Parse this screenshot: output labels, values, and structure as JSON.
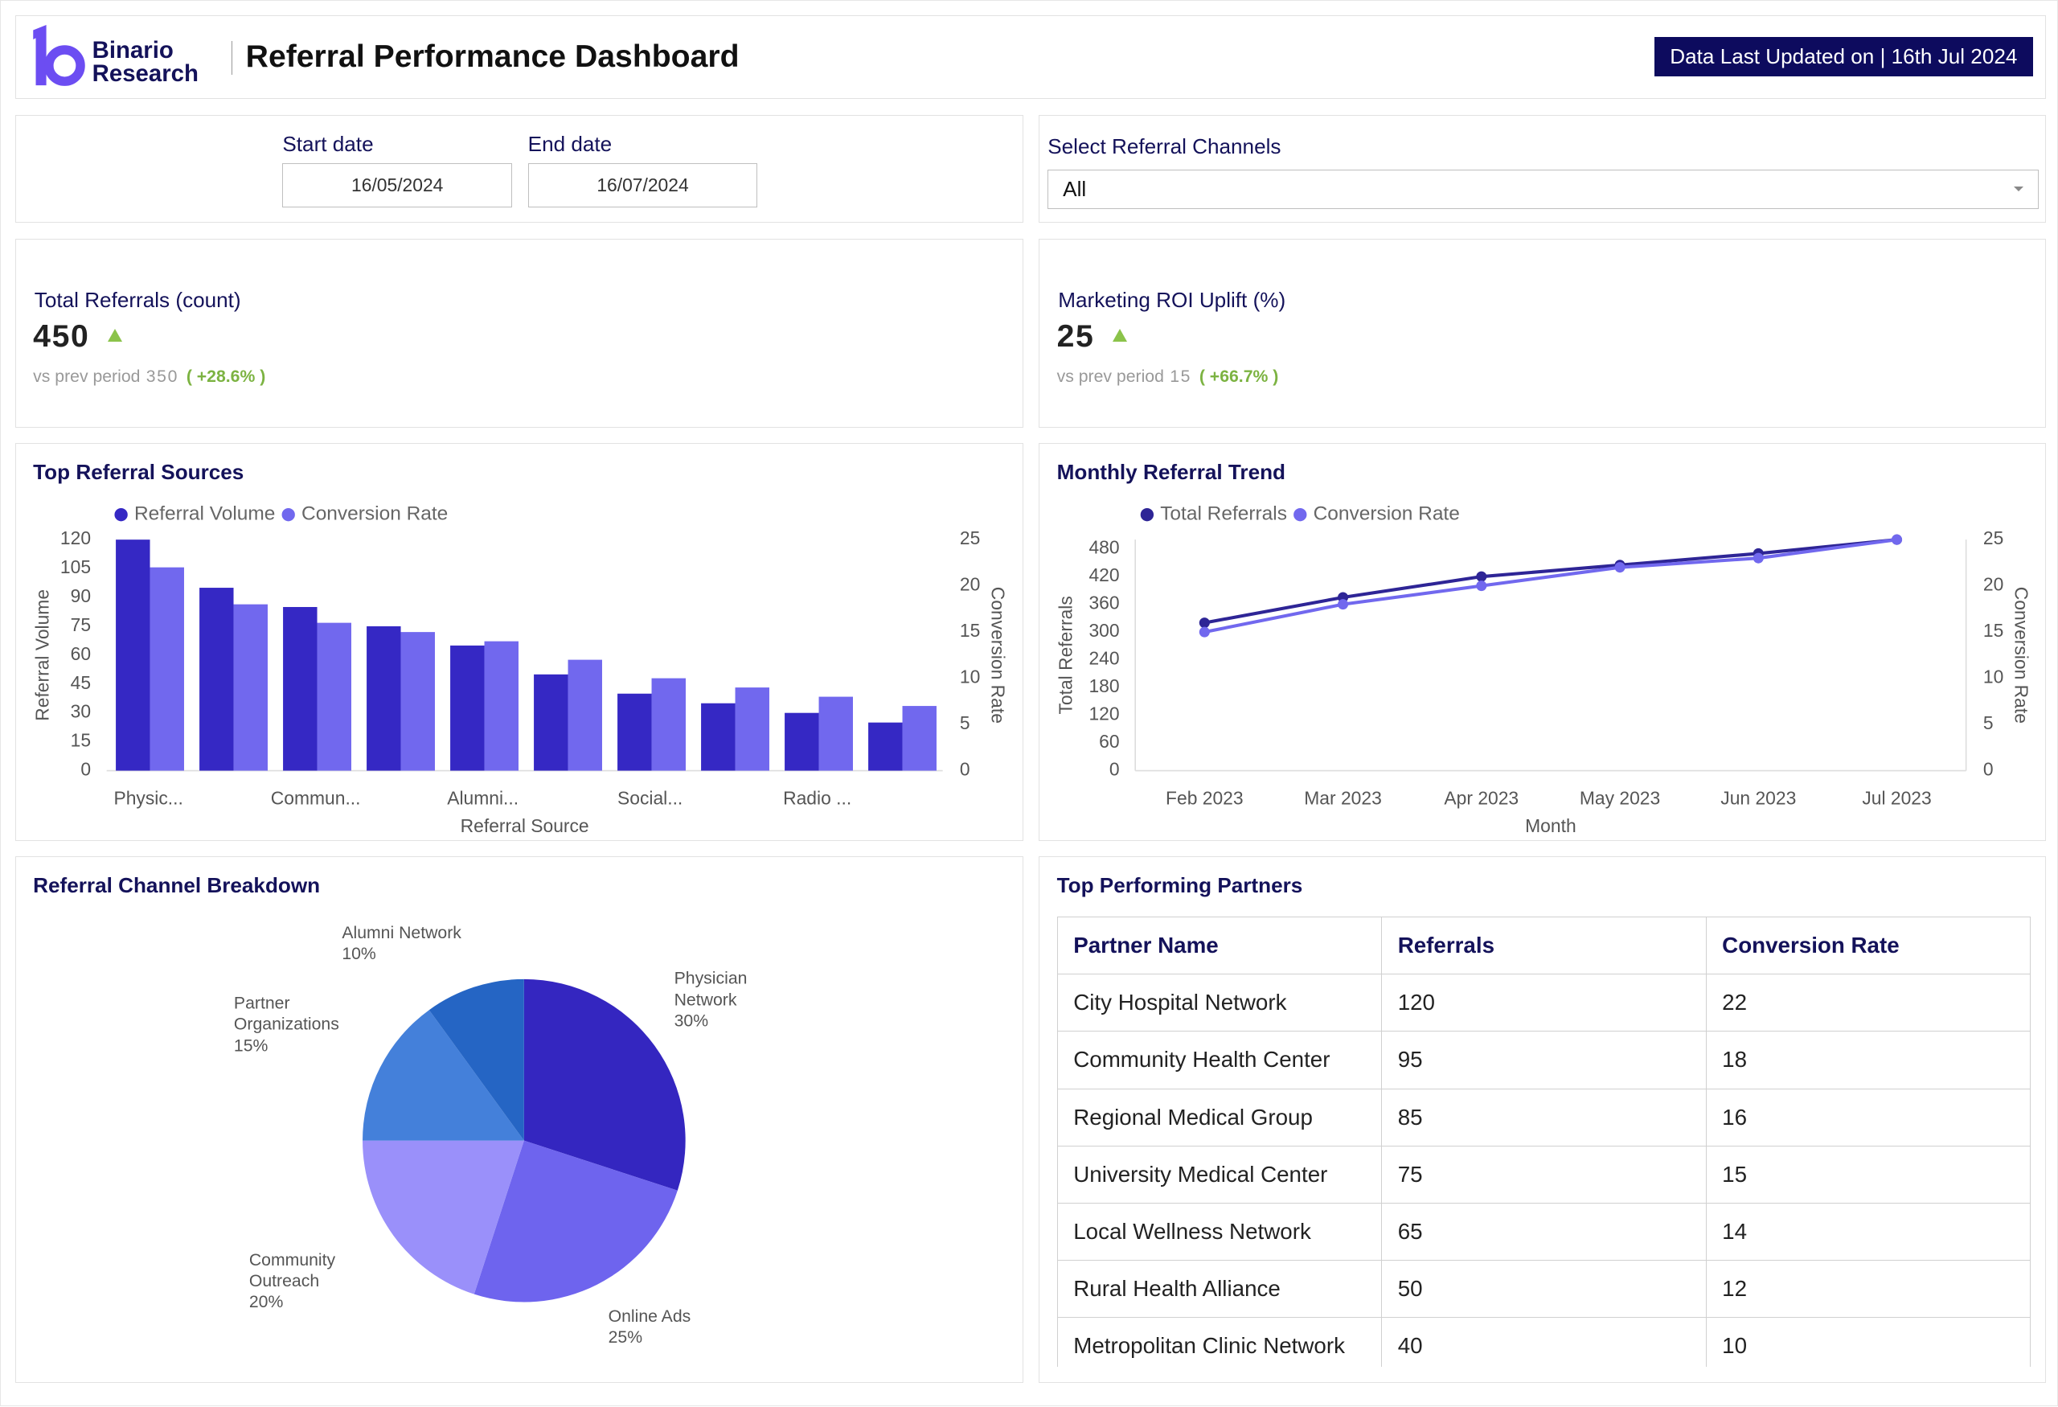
{
  "header": {
    "logo": [
      "Binario",
      "Research"
    ],
    "title": "Referral Performance Dashboard",
    "updated": "Data Last Updated on | 16th Jul 2024"
  },
  "filters": {
    "start_label": "Start date",
    "start": "16/05/2024",
    "end_label": "End date",
    "end": "16/07/2024",
    "channel_label": "Select Referral Channels",
    "channel": "All"
  },
  "kpis": [
    {
      "label": "Total Referrals (count)",
      "value": "450",
      "prev_label": "vs prev period",
      "prev": "350",
      "change": "( +28.6% )"
    },
    {
      "label": "Marketing ROI Uplift (%)",
      "value": "25",
      "prev_label": "vs prev period",
      "prev": "15",
      "change": "( +66.7% )"
    }
  ],
  "chart_data": [
    {
      "type": "bar",
      "title": "Top Referral Sources",
      "categories": [
        "Physic...",
        null,
        "Commun...",
        null,
        "Alumni...",
        null,
        "Social...",
        null,
        "Radio ...",
        null
      ],
      "series": [
        {
          "name": "Referral Volume",
          "color": "#3528c4",
          "values": [
            120,
            95,
            85,
            75,
            65,
            50,
            40,
            35,
            30,
            25
          ]
        },
        {
          "name": "Conversion Rate",
          "color": "#7168ee",
          "axis": "y2",
          "values": [
            22,
            18,
            16,
            15,
            14,
            12,
            10,
            9,
            8,
            7
          ]
        }
      ],
      "xlabel": "Referral Source",
      "ylabel": "Referral Volume",
      "y2label": "Conversion Rate",
      "ylim": [
        0,
        120
      ],
      "yticks": [
        0,
        15,
        30,
        45,
        60,
        75,
        90,
        105,
        120
      ],
      "y2lim": [
        0,
        25
      ],
      "y2ticks": [
        0,
        5,
        10,
        15,
        20,
        25
      ],
      "legend": "top"
    },
    {
      "type": "line",
      "title": "Monthly Referral Trend",
      "categories": [
        "Feb 2023",
        "Mar 2023",
        "Apr 2023",
        "May 2023",
        "Jun 2023",
        "Jul 2023"
      ],
      "series": [
        {
          "name": "Total Referrals",
          "color": "#2e2596",
          "values": [
            320,
            375,
            420,
            445,
            470,
            500
          ]
        },
        {
          "name": "Conversion Rate",
          "color": "#7168ee",
          "axis": "y2",
          "values": [
            15,
            18,
            20,
            22,
            23,
            25
          ]
        }
      ],
      "xlabel": "Month",
      "ylabel": "Total Referrals",
      "y2label": "Conversion Rate",
      "ylim": [
        0,
        500
      ],
      "yticks": [
        0,
        60,
        120,
        180,
        240,
        300,
        360,
        420,
        480
      ],
      "y2lim": [
        0,
        25
      ],
      "y2ticks": [
        0,
        5,
        10,
        15,
        20,
        25
      ],
      "legend": "top"
    },
    {
      "type": "pie",
      "title": "Referral Channel Breakdown",
      "categories": [
        "Physician Network",
        "Online Ads",
        "Community Outreach",
        "Partner Organizations",
        "Alumni Network"
      ],
      "values": [
        30,
        25,
        20,
        15,
        10
      ],
      "value_labels": [
        "30%",
        "25%",
        "20%",
        "15%",
        "10%"
      ],
      "colors": [
        "#3426c0",
        "#6e64ee",
        "#9a90fa",
        "#4480da",
        "#2565c4"
      ]
    }
  ],
  "table": {
    "title": "Top Performing Partners",
    "columns": [
      "Partner Name",
      "Referrals",
      "Conversion Rate"
    ],
    "rows": [
      [
        "City Hospital Network",
        "120",
        "22"
      ],
      [
        "Community Health Center",
        "95",
        "18"
      ],
      [
        "Regional Medical Group",
        "85",
        "16"
      ],
      [
        "University Medical Center",
        "75",
        "15"
      ],
      [
        "Local Wellness Network",
        "65",
        "14"
      ],
      [
        "Rural Health Alliance",
        "50",
        "12"
      ],
      [
        "Metropolitan Clinic Network",
        "40",
        "10"
      ]
    ]
  }
}
